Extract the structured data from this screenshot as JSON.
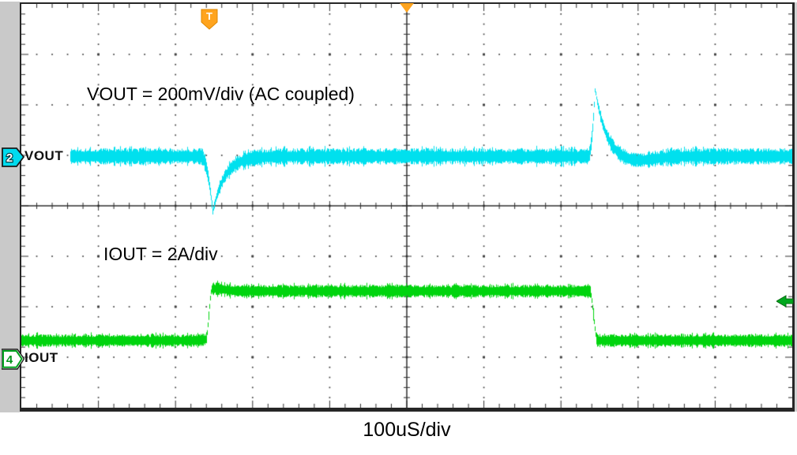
{
  "scope": {
    "timebase_label": "100uS/div",
    "trigger": {
      "symbol": "T",
      "color": "#ffa41e"
    },
    "channels": [
      {
        "id": "2",
        "name": "VOUT",
        "color": "#00e0ee"
      },
      {
        "id": "4",
        "name": "IOUT",
        "color": "#00d40e"
      }
    ]
  },
  "chart_data": {
    "type": "line",
    "subtype": "oscilloscope-capture",
    "title": "",
    "x_divisions": 10,
    "y_divisions": 8,
    "time_per_div_us": 100,
    "timebase_label": "100uS/div",
    "grid": "dotted graticule with solid center axes and minor ticks",
    "legend_position": "none",
    "annotations": {
      "vout": "VOUT = 200mV/div (AC coupled)",
      "iout": "IOUT = 2A/div"
    },
    "series": [
      {
        "name": "VOUT",
        "channel": "2",
        "color": "#00e0ee",
        "scale_label": "200mV/div",
        "mV_per_div": 200,
        "coupling": "AC",
        "baseline_div_from_center": 0.98,
        "noise_pp_mV": 60,
        "start_x_div": 0.64,
        "events": [
          {
            "type": "undershoot-spike",
            "t_div": 2.48,
            "t_us": 248,
            "amplitude_mV": -220
          },
          {
            "type": "overshoot-spike",
            "t_div": 7.44,
            "t_us": 744,
            "amplitude_mV": 270
          }
        ]
      },
      {
        "name": "IOUT",
        "channel": "4",
        "color": "#00d40e",
        "scale_label": "2A/div",
        "A_per_div": 2,
        "low_level_div_from_center": -2.67,
        "high_level_div_from_center": -1.69,
        "step_A": 2,
        "noise_pp_A": 0.4,
        "rise_t_div": 2.43,
        "rise_t_us": 243,
        "fall_t_div": 7.42,
        "fall_t_us": 742
      }
    ]
  }
}
